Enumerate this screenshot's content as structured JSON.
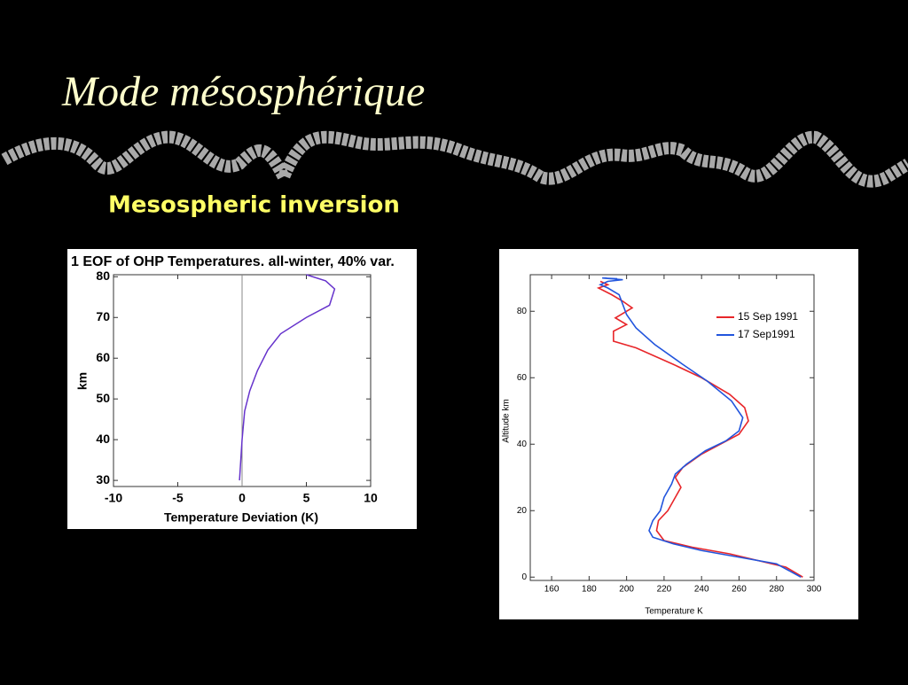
{
  "slide": {
    "title": "Mode mésosphérique",
    "subtitle": "Mesospheric inversion"
  },
  "chart_data": [
    {
      "type": "line",
      "title": "1 EOF of OHP Temperatures. all-winter, 40% var.",
      "x_label": "Temperature Deviation (K)",
      "y_label": "km",
      "color": "#6633cc",
      "x": [
        -0.2,
        -0.1,
        0,
        0.2,
        0.6,
        1.2,
        2.0,
        3.0,
        5.0,
        6.8,
        7.2,
        6.5,
        5.0
      ],
      "values": [
        30,
        35,
        40,
        47,
        52,
        57,
        62,
        66,
        70,
        73,
        77,
        79,
        80.5
      ],
      "xlim": [
        -10,
        10
      ],
      "xticks": [
        -10,
        -5,
        0,
        5,
        10
      ],
      "ylim": [
        28.5,
        80.5
      ],
      "yticks": [
        30,
        40,
        50,
        60,
        70,
        80
      ]
    },
    {
      "type": "line",
      "x_label": "Temperature K",
      "y_label": "Altitude km",
      "legend": "upper right",
      "xlim": [
        148.6,
        300
      ],
      "xticks": [
        160,
        180,
        200,
        220,
        240,
        260,
        280,
        300
      ],
      "ylim": [
        -1,
        91
      ],
      "yticks": [
        0,
        20,
        40,
        60,
        80
      ],
      "series": [
        {
          "name": "15 Sep 1991",
          "color": "#e8262a",
          "x": [
            294,
            285,
            270,
            255,
            235,
            220,
            216,
            217,
            222,
            226,
            229,
            226,
            230,
            240,
            250,
            260,
            265,
            263,
            255,
            240,
            225,
            205,
            193,
            193,
            200,
            194,
            203,
            198,
            192,
            185,
            190,
            186
          ],
          "values": [
            0,
            3,
            5,
            7,
            9,
            11,
            14,
            17,
            20,
            24,
            27,
            30,
            33,
            37,
            40,
            43,
            47,
            51,
            55,
            60,
            64,
            69,
            71,
            74,
            76,
            78,
            81,
            83,
            85,
            87,
            88,
            89
          ]
        },
        {
          "name": "17 Sep1991",
          "color": "#2255dd",
          "x": [
            293,
            280,
            260,
            240,
            225,
            214,
            212,
            214,
            218,
            220,
            224,
            226,
            232,
            242,
            253,
            260,
            262,
            256,
            243,
            230,
            215,
            205,
            200,
            198,
            196,
            190,
            186,
            190,
            198,
            187,
            195
          ],
          "values": [
            0,
            4,
            6,
            8,
            10,
            12,
            14,
            17,
            20,
            24,
            28,
            31,
            34,
            38,
            41,
            44,
            48,
            53,
            59,
            64,
            70,
            75,
            79,
            82,
            85,
            87,
            88,
            89,
            89.5,
            90,
            89.8
          ]
        }
      ]
    }
  ]
}
